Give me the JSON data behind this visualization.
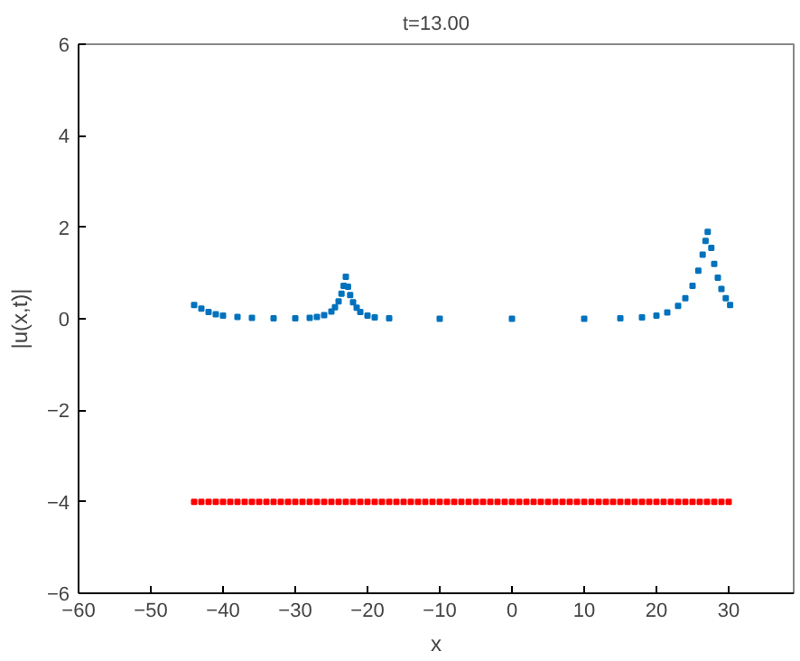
{
  "chart_data": {
    "type": "scatter",
    "title": "t=13.00",
    "xlabel": "x",
    "ylabel": "|u(x,t)|",
    "xlim": [
      -60,
      39
    ],
    "ylim": [
      -6,
      6
    ],
    "xticks": [
      -60,
      -50,
      -40,
      -30,
      -20,
      -10,
      0,
      10,
      20,
      30
    ],
    "yticks": [
      -6,
      -4,
      -2,
      0,
      2,
      4,
      6
    ],
    "grid": false,
    "marker": "square",
    "series": [
      {
        "color": "#0072bd",
        "x": [
          -44,
          -43,
          -42,
          -41,
          -40,
          -38,
          -36,
          -33,
          -30,
          -28,
          -27,
          -26,
          -25,
          -24.5,
          -24,
          -23.6,
          -23.3,
          -23,
          -22.7,
          -22.4,
          -22,
          -21.5,
          -21,
          -20,
          -19,
          -17,
          -10,
          0,
          10,
          15,
          18,
          20,
          21.5,
          23,
          24,
          25,
          25.8,
          26.4,
          26.8,
          27.1,
          27.6,
          28,
          28.5,
          29,
          29.6,
          30.2
        ],
        "values": [
          0.3,
          0.22,
          0.15,
          0.1,
          0.07,
          0.04,
          0.02,
          0.01,
          0.01,
          0.02,
          0.04,
          0.08,
          0.16,
          0.25,
          0.38,
          0.55,
          0.72,
          0.92,
          0.7,
          0.52,
          0.36,
          0.24,
          0.15,
          0.07,
          0.03,
          0.01,
          0.0,
          0.0,
          0.0,
          0.01,
          0.03,
          0.07,
          0.14,
          0.28,
          0.45,
          0.72,
          1.05,
          1.4,
          1.7,
          1.9,
          1.55,
          1.2,
          0.9,
          0.65,
          0.45,
          0.3
        ]
      },
      {
        "color": "#ff0000",
        "x": [
          -44,
          -43,
          -42,
          -41,
          -40,
          -39,
          -38,
          -37,
          -36,
          -35,
          -34,
          -33,
          -32,
          -31,
          -30,
          -29,
          -28,
          -27,
          -26,
          -25,
          -24,
          -23,
          -22,
          -21,
          -20,
          -19,
          -18,
          -17,
          -16,
          -15,
          -14,
          -13,
          -12,
          -11,
          -10,
          -9,
          -8,
          -7,
          -6,
          -5,
          -4,
          -3,
          -2,
          -1,
          0,
          1,
          2,
          3,
          4,
          5,
          6,
          7,
          8,
          9,
          10,
          11,
          12,
          13,
          14,
          15,
          16,
          17,
          18,
          19,
          20,
          21,
          22,
          23,
          24,
          25,
          26,
          27,
          28,
          29,
          30
        ],
        "values": [
          -4,
          -4,
          -4,
          -4,
          -4,
          -4,
          -4,
          -4,
          -4,
          -4,
          -4,
          -4,
          -4,
          -4,
          -4,
          -4,
          -4,
          -4,
          -4,
          -4,
          -4,
          -4,
          -4,
          -4,
          -4,
          -4,
          -4,
          -4,
          -4,
          -4,
          -4,
          -4,
          -4,
          -4,
          -4,
          -4,
          -4,
          -4,
          -4,
          -4,
          -4,
          -4,
          -4,
          -4,
          -4,
          -4,
          -4,
          -4,
          -4,
          -4,
          -4,
          -4,
          -4,
          -4,
          -4,
          -4,
          -4,
          -4,
          -4,
          -4,
          -4,
          -4,
          -4,
          -4,
          -4,
          -4,
          -4,
          -4,
          -4,
          -4,
          -4,
          -4,
          -4,
          -4,
          -4
        ]
      }
    ]
  }
}
